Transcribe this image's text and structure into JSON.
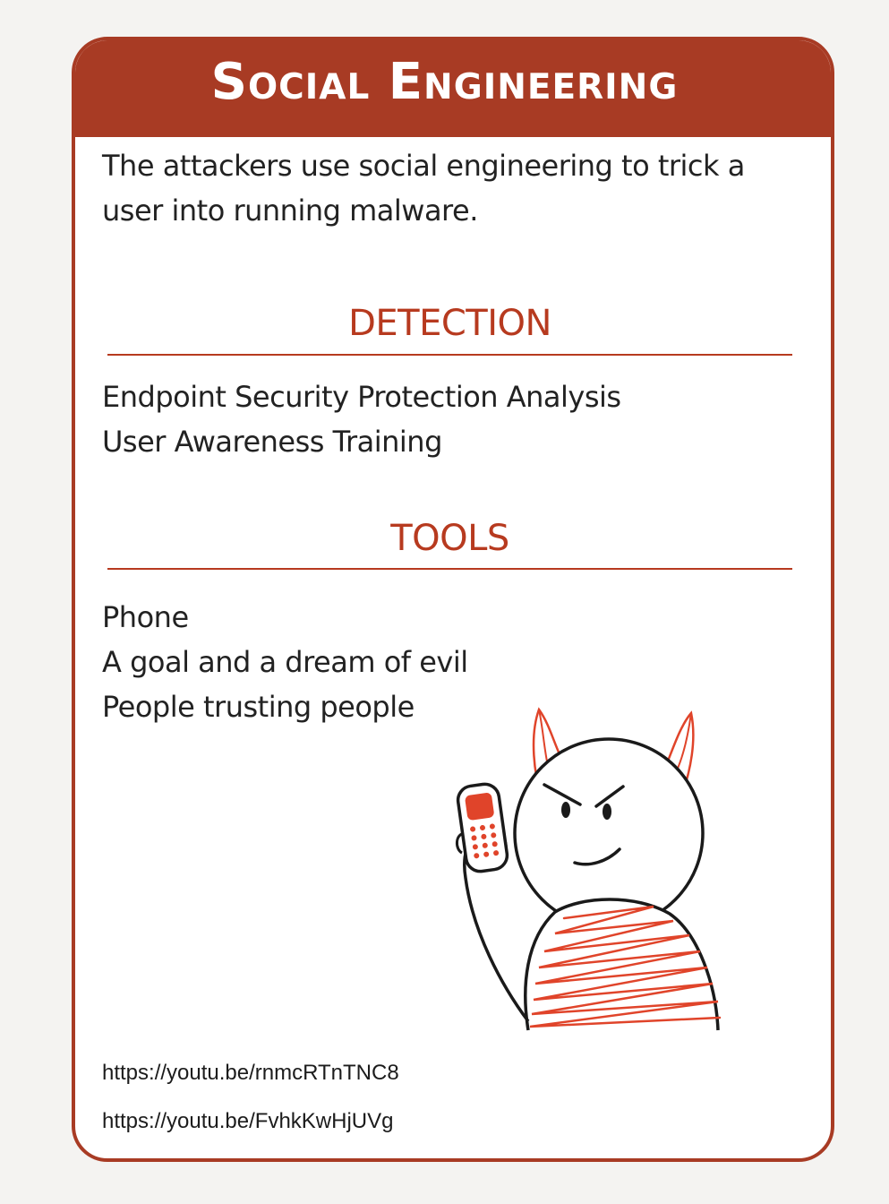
{
  "card": {
    "title": "Social Engineering",
    "description": "The attackers use social engineering to trick a user into running malware.",
    "accent_color": "#a83b24"
  },
  "detection": {
    "heading": "DETECTION",
    "items": [
      "Endpoint Security Protection Analysis",
      "User Awareness Training"
    ]
  },
  "tools": {
    "heading": "TOOLS",
    "items": [
      "Phone",
      "A goal and a dream of evil",
      "People trusting people"
    ]
  },
  "illustration": {
    "icon": "devil-with-phone-icon"
  },
  "links": [
    "https://youtu.be/rnmcRTnTNC8",
    "https://youtu.be/FvhkKwHjUVg"
  ]
}
